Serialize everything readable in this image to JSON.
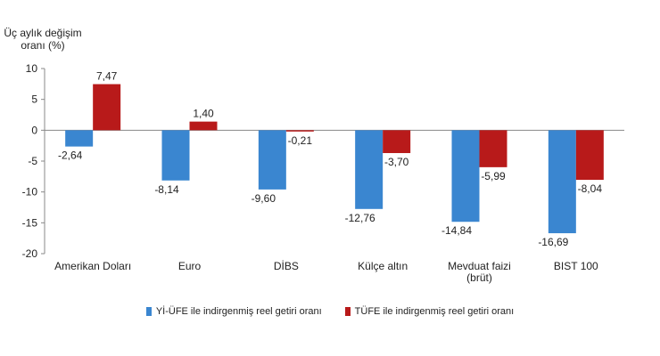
{
  "chart_data": {
    "type": "bar",
    "ylabel_lines": [
      "Üç aylık değişim",
      "oranı (%)"
    ],
    "ylim": [
      -20,
      10
    ],
    "yticks": [
      10,
      5,
      0,
      -5,
      -10,
      -15,
      -20
    ],
    "categories": [
      [
        "Amerikan Doları"
      ],
      [
        "Euro"
      ],
      [
        "DİBS"
      ],
      [
        "Külçe altın"
      ],
      [
        "Mevduat faizi",
        "(brüt)"
      ],
      [
        "BIST 100"
      ]
    ],
    "series": [
      {
        "name": "Yİ-ÜFE ile indirgenmiş reel getiri oranı",
        "color": "#3a86d0",
        "values": [
          -2.64,
          -8.14,
          -9.6,
          -12.76,
          -14.84,
          -16.69
        ],
        "labels": [
          "-2,64",
          "-8,14",
          "-9,60",
          "-12,76",
          "-14,84",
          "-16,69"
        ]
      },
      {
        "name": "TÜFE ile indirgenmiş reel getiri oranı",
        "color": "#b81a1a",
        "values": [
          7.47,
          1.4,
          -0.21,
          -3.7,
          -5.99,
          -8.04
        ],
        "labels": [
          "7,47",
          "1,40",
          "-0,21",
          "-3,70",
          "-5,99",
          "-8,04"
        ]
      }
    ],
    "grid": false,
    "legend_position": "bottom"
  }
}
